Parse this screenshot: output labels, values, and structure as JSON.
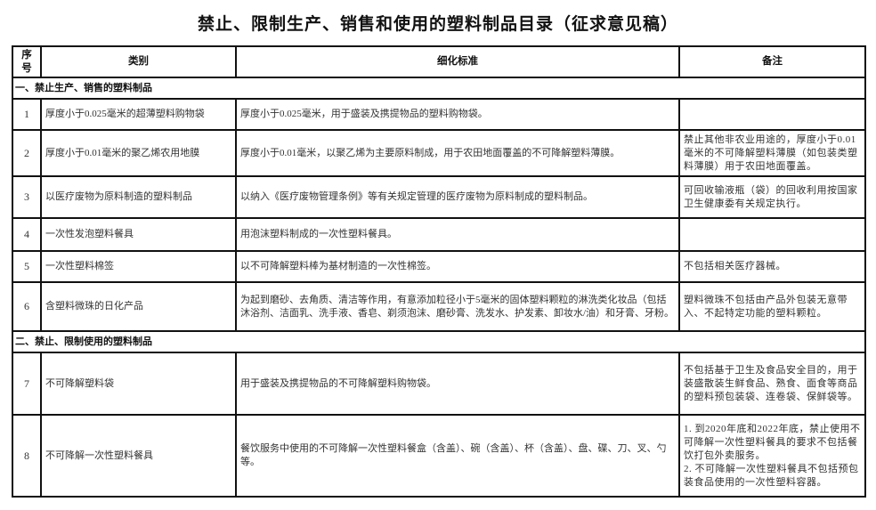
{
  "title": "禁止、限制生产、销售和使用的塑料制品目录（征求意见稿）",
  "headers": {
    "no": "序号",
    "category": "类别",
    "standard": "细化标准",
    "note": "备注"
  },
  "sections": [
    {
      "title": "一、禁止生产、销售的塑料制品",
      "rows": [
        {
          "no": "1",
          "category": "厚度小于0.025毫米的超薄塑料购物袋",
          "standard": "厚度小于0.025毫米，用于盛装及携提物品的塑料购物袋。",
          "note": ""
        },
        {
          "no": "2",
          "category": "厚度小于0.01毫米的聚乙烯农用地膜",
          "standard": "厚度小于0.01毫米，以聚乙烯为主要原料制成，用于农田地面覆盖的不可降解塑料薄膜。",
          "note": "禁止其他非农业用途的，厚度小于0.01毫米的不可降解塑料薄膜（如包装类塑料薄膜）用于农田地面覆盖。"
        },
        {
          "no": "3",
          "category": "以医疗废物为原料制造的塑料制品",
          "standard": "以纳入《医疗废物管理条例》等有关规定管理的医疗废物为原料制成的塑料制品。",
          "note": "可回收输液瓶（袋）的回收利用按国家卫生健康委有关规定执行。"
        },
        {
          "no": "4",
          "category": "一次性发泡塑料餐具",
          "standard": "用泡沫塑料制成的一次性塑料餐具。",
          "note": ""
        },
        {
          "no": "5",
          "category": "一次性塑料棉签",
          "standard": "以不可降解塑料棒为基材制造的一次性棉签。",
          "note": "不包括相关医疗器械。"
        },
        {
          "no": "6",
          "category": "含塑料微珠的日化产品",
          "standard": "为起到磨砂、去角质、清洁等作用，有意添加粒径小于5毫米的固体塑料颗粒的淋洗类化妆品（包括沐浴剂、洁面乳、洗手液、香皂、剃须泡沫、磨砂膏、洗发水、护发素、卸妆水/油）和牙膏、牙粉。",
          "note": "塑料微珠不包括由产品外包装无意带入、不起特定功能的塑料颗粒。"
        }
      ]
    },
    {
      "title": "二、禁止、限制使用的塑料制品",
      "rows": [
        {
          "no": "7",
          "category": "不可降解塑料袋",
          "standard": "用于盛装及携提物品的不可降解塑料购物袋。",
          "note": "不包括基于卫生及食品安全目的，用于装盛散装生鲜食品、熟食、面食等商品的塑料预包装袋、连卷袋、保鲜袋等。"
        },
        {
          "no": "8",
          "category": "不可降解一次性塑料餐具",
          "standard": "餐饮服务中使用的不可降解一次性塑料餐盒（含盖）、碗（含盖）、杯（含盖）、盘、碟、刀、叉、勺等。",
          "note_items": [
            "1. 到2020年底和2022年底，禁止使用不可降解一次性塑料餐具的要求不包括餐饮打包外卖服务。",
            "2. 不可降解一次性塑料餐具不包括预包装食品使用的一次性塑料容器。"
          ]
        }
      ]
    }
  ]
}
